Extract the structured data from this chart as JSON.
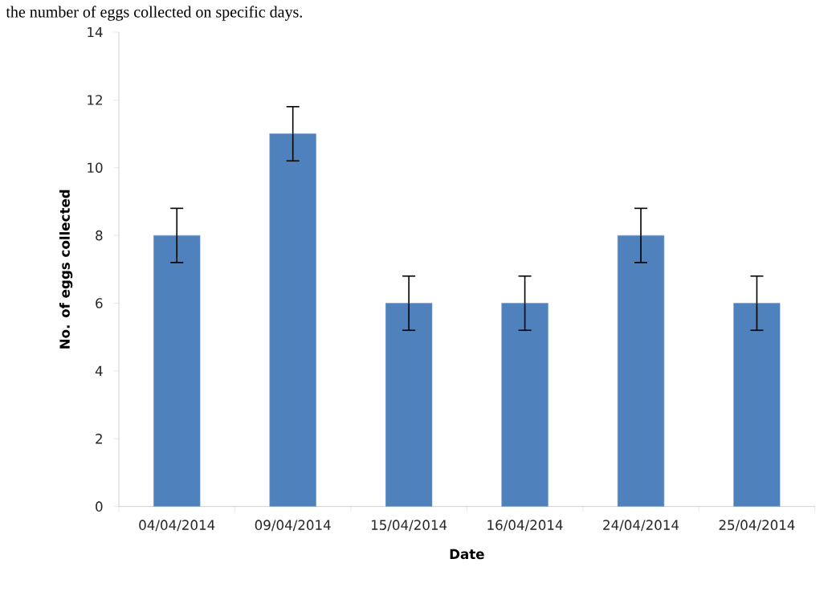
{
  "chart_data": {
    "type": "bar",
    "xlabel": "Date",
    "ylabel": "No. of eggs collected",
    "categories": [
      "04/04/2014",
      "09/04/2014",
      "15/04/2014",
      "16/04/2014",
      "24/04/2014",
      "25/04/2014"
    ],
    "values": [
      8,
      11,
      6,
      6,
      8,
      6
    ],
    "errors": [
      0.8,
      0.8,
      0.8,
      0.8,
      0.8,
      0.8
    ],
    "color": "#4f81bd",
    "ylim": [
      0,
      14
    ],
    "yticks": [
      0,
      2,
      4,
      6,
      8,
      10,
      12,
      14
    ],
    "grid": false,
    "annotations": [
      "the number of eggs collected on specific days."
    ]
  }
}
